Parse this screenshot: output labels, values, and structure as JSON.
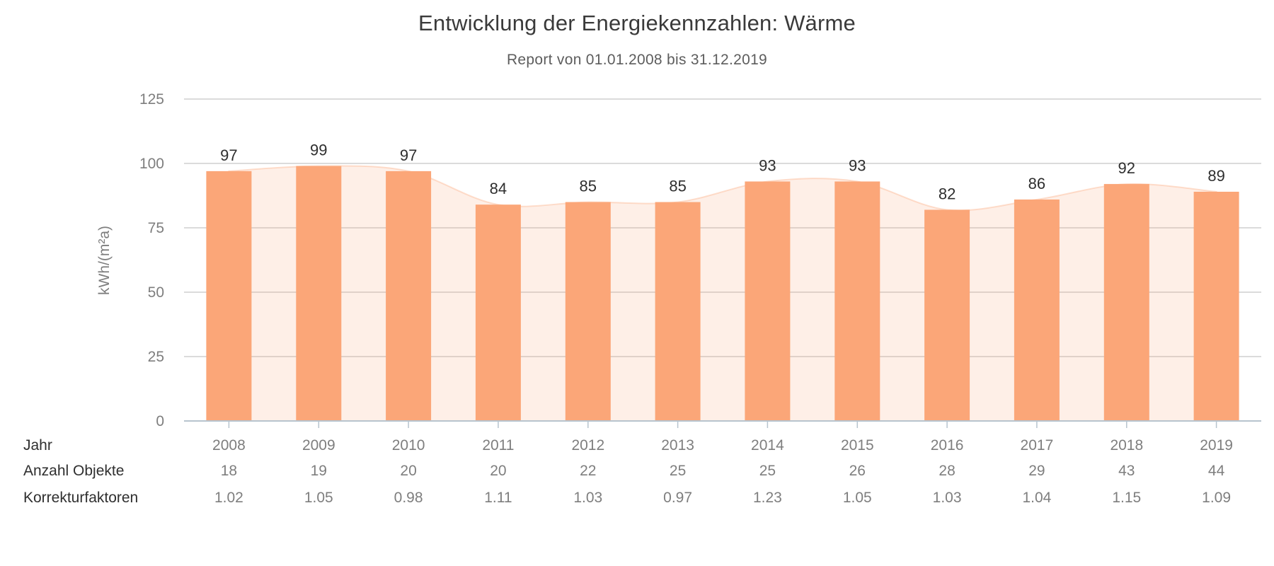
{
  "title": "Entwicklung der Energiekennzahlen: Wärme",
  "subtitle": "Report von 01.01.2008 bis 31.12.2019",
  "chart_data": {
    "type": "bar",
    "overlay": "spline-area",
    "title": "Entwicklung der Energiekennzahlen: Wärme",
    "subtitle": "Report von 01.01.2008 bis 31.12.2019",
    "categories": [
      "2008",
      "2009",
      "2010",
      "2011",
      "2012",
      "2013",
      "2014",
      "2015",
      "2016",
      "2017",
      "2018",
      "2019"
    ],
    "series": [
      {
        "name": "Wärme kWh/(m²a)",
        "values": [
          97,
          99,
          97,
          84,
          85,
          85,
          93,
          93,
          82,
          86,
          92,
          89
        ]
      }
    ],
    "xlabel": "Jahr",
    "ylabel": "kWh/(m²a)",
    "ylim": [
      0,
      125
    ],
    "yticks": [
      0,
      25,
      50,
      75,
      100,
      125
    ],
    "grid": true,
    "legend": "none",
    "data_labels": true,
    "colors": {
      "bar": "#FBA678",
      "area_fill": "#FBA678",
      "area_fill_opacity": 0.18,
      "area_stroke": "#FBA678",
      "area_stroke_opacity": 0.35,
      "gridline": "#D6D6D6",
      "axis": "#B7C4CE",
      "text_muted": "#7E7E7E",
      "text_dark": "#2E2E2E",
      "caption": "#2F2F2F"
    }
  },
  "table": {
    "row_labels": [
      "Jahr",
      "Anzahl Objekte",
      "Korrekturfaktoren"
    ],
    "rows": {
      "jahr": [
        "2008",
        "2009",
        "2010",
        "2011",
        "2012",
        "2013",
        "2014",
        "2015",
        "2016",
        "2017",
        "2018",
        "2019"
      ],
      "anzahl_objekte": [
        18,
        19,
        20,
        20,
        22,
        25,
        25,
        26,
        28,
        29,
        43,
        44
      ],
      "korrekturfaktoren": [
        "1.02",
        "1.05",
        "0.98",
        "1.11",
        "1.03",
        "0.97",
        "1.23",
        "1.05",
        "1.03",
        "1.04",
        "1.15",
        "1.09"
      ]
    }
  }
}
